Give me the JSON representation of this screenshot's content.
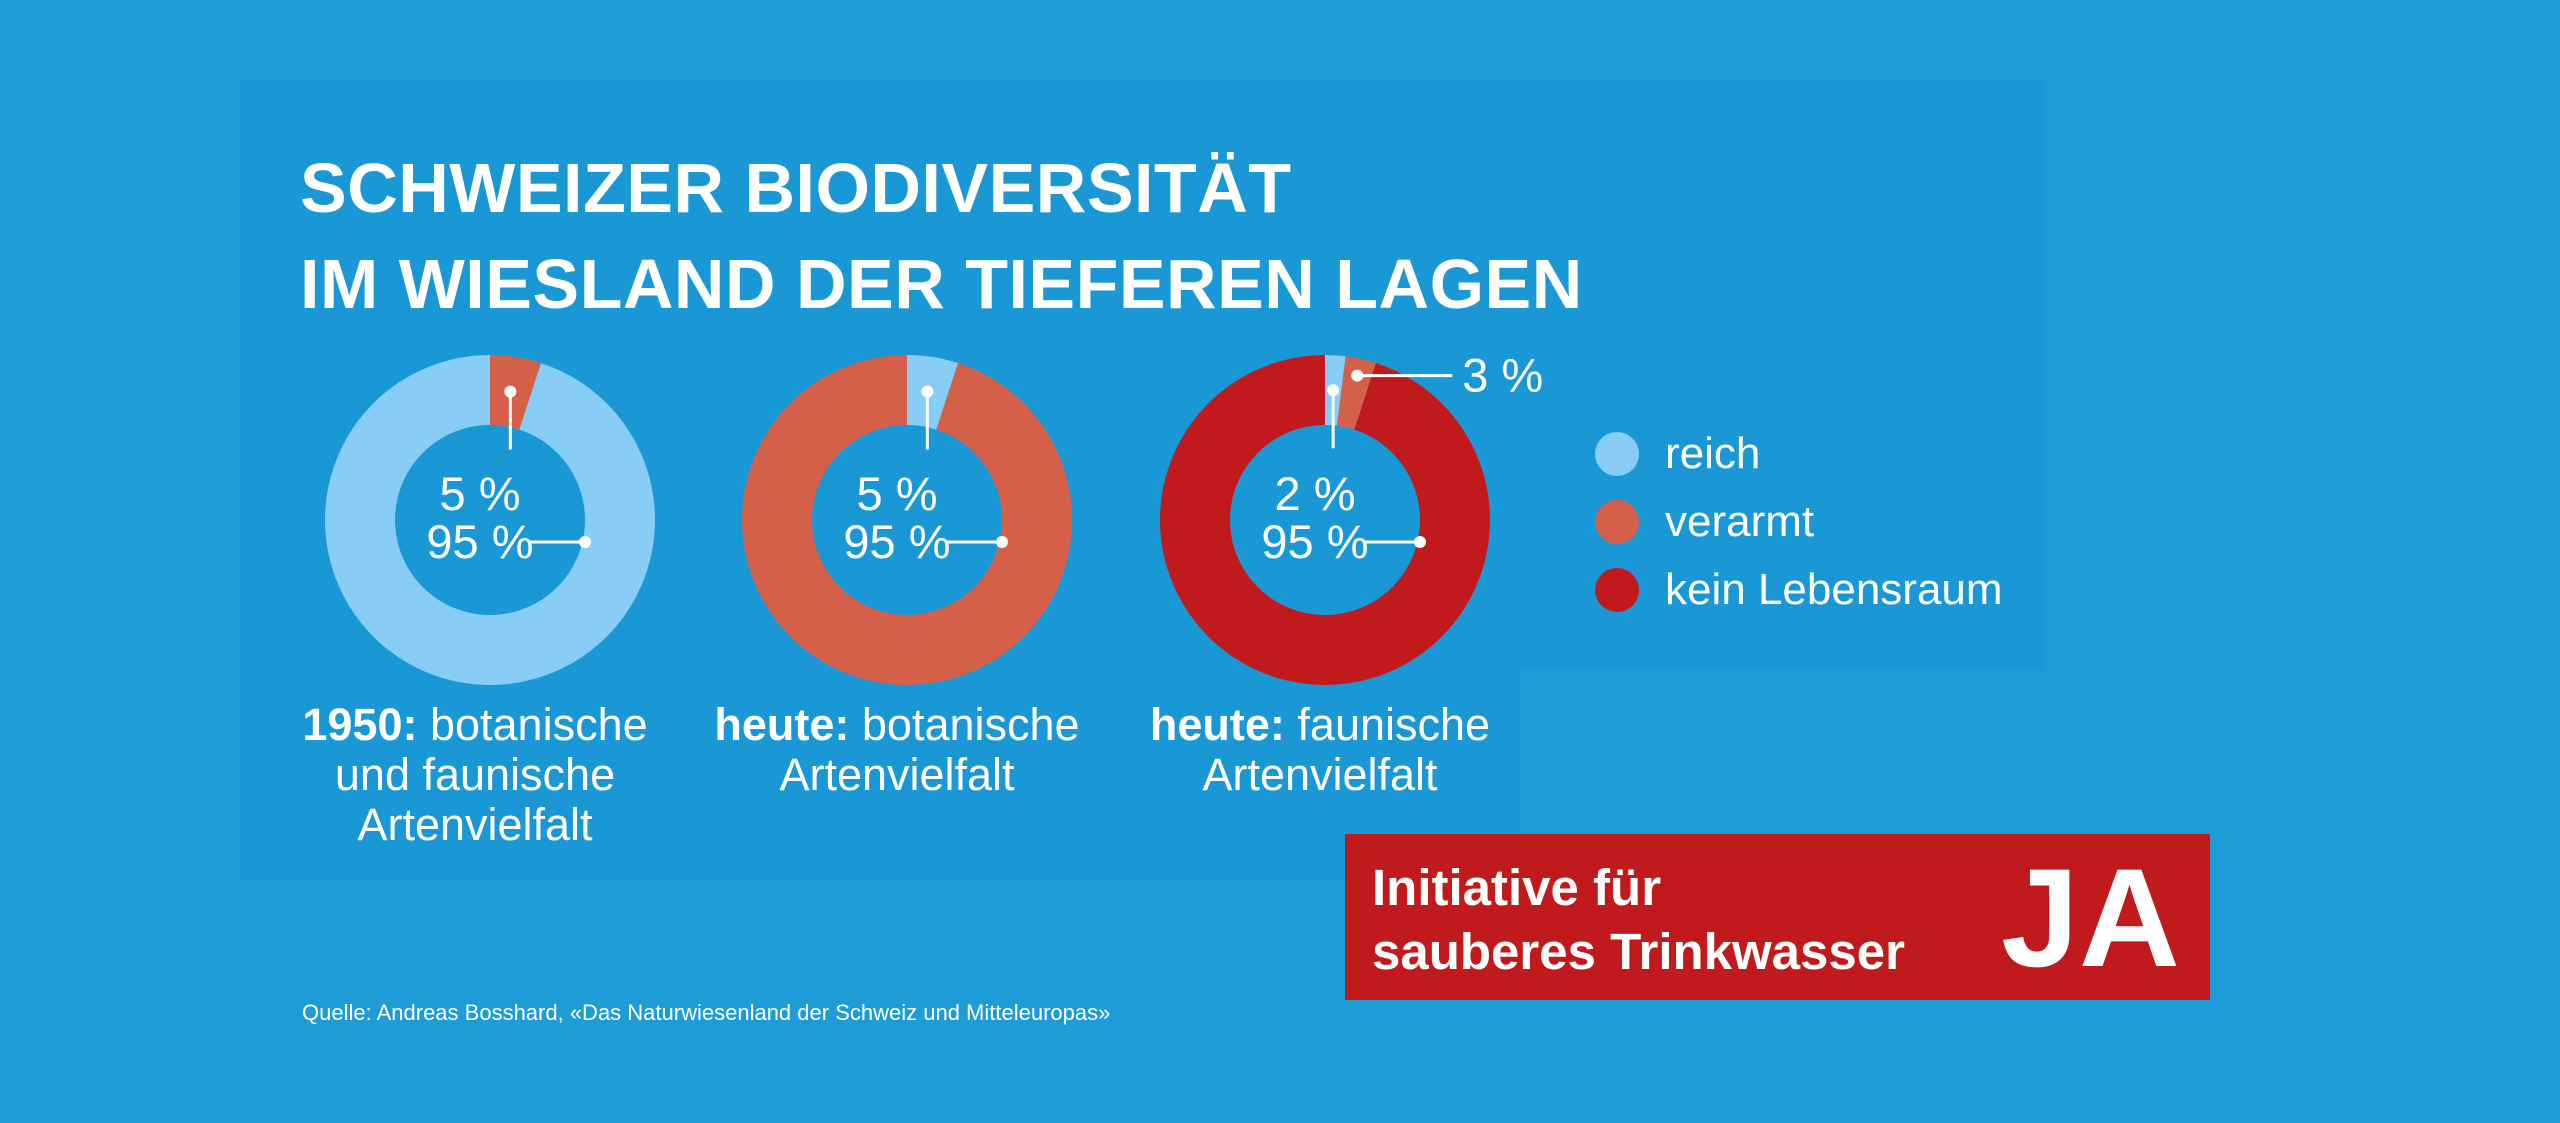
{
  "colors": {
    "background": "#1e9cd8",
    "reich": "#87cdf5",
    "verarmt": "#d5604a",
    "kein_lebensraum": "#c01a1c"
  },
  "title": {
    "line1": "SCHWEIZER BIODIVERSITÄT",
    "line2": "IM  WIESLAND DER TIEFEREN LAGEN"
  },
  "chart_data": {
    "type": "pie",
    "title": "SCHWEIZER BIODIVERSITÄT IM WIESLAND DER TIEFEREN LAGEN",
    "legend": {
      "placement": "right",
      "items": [
        "reich",
        "verarmt",
        "kein Lebensraum"
      ]
    },
    "charts": [
      {
        "caption_bold": "1950:",
        "caption_lines": [
          " botanische",
          "und faunische",
          "Artenvielfalt"
        ],
        "slices": [
          {
            "category": "verarmt",
            "value": 5,
            "label": "5 %"
          },
          {
            "category": "reich",
            "value": 95,
            "label": "95 %"
          }
        ]
      },
      {
        "caption_bold": "heute:",
        "caption_lines": [
          " botanische",
          "Artenvielfalt"
        ],
        "slices": [
          {
            "category": "reich",
            "value": 5,
            "label": "5 %"
          },
          {
            "category": "verarmt",
            "value": 95,
            "label": "95 %"
          }
        ]
      },
      {
        "caption_bold": "heute:",
        "caption_lines": [
          " faunische",
          "Artenvielfalt"
        ],
        "slices": [
          {
            "category": "reich",
            "value": 2,
            "label": "2 %"
          },
          {
            "category": "verarmt",
            "value": 3,
            "label": "3 %"
          },
          {
            "category": "kein Lebensraum",
            "value": 95,
            "label": "95 %"
          }
        ]
      }
    ]
  },
  "badge": {
    "line1": "Initiative für",
    "line2": "sauberes Trinkwasser",
    "ja": "JA"
  },
  "source": "Quelle: Andreas Bosshard, «Das Naturwiesenland der Schweiz und Mitteleuropas»"
}
